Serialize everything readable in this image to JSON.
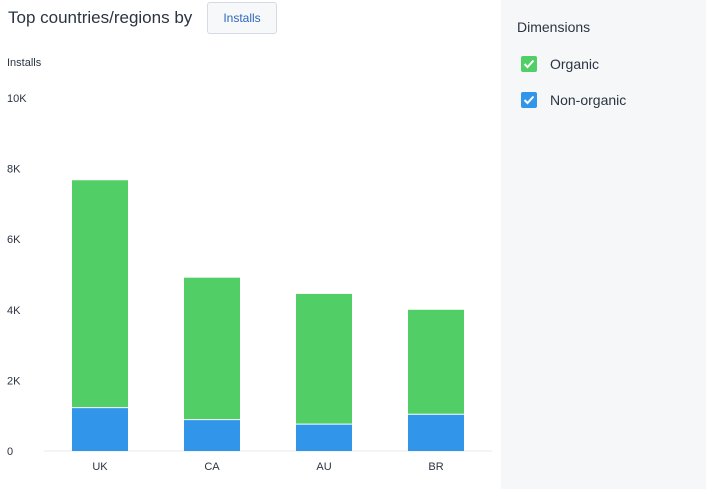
{
  "header": {
    "title": "Top countries/regions by",
    "metric_button": "Installs"
  },
  "side_panel": {
    "title": "Dimensions",
    "items": [
      {
        "label": "Organic",
        "color": "#51cf66",
        "checked": true
      },
      {
        "label": "Non-organic",
        "color": "#3196ea",
        "checked": true
      }
    ]
  },
  "chart_data": {
    "type": "bar",
    "stacked": true,
    "ylabel": "Installs",
    "ylim": [
      0,
      10000
    ],
    "yticks": [
      0,
      2000,
      4000,
      6000,
      8000,
      10000
    ],
    "ytick_labels": [
      "0",
      "2K",
      "4K",
      "6K",
      "8K",
      "10K"
    ],
    "categories": [
      "UK",
      "CA",
      "AU",
      "BR"
    ],
    "series": [
      {
        "name": "Non-organic",
        "color": "#3196ea",
        "values": [
          1230,
          890,
          760,
          1040
        ]
      },
      {
        "name": "Organic",
        "color": "#51cf66",
        "values": [
          6440,
          4020,
          3690,
          2960
        ]
      }
    ],
    "grid": false
  }
}
